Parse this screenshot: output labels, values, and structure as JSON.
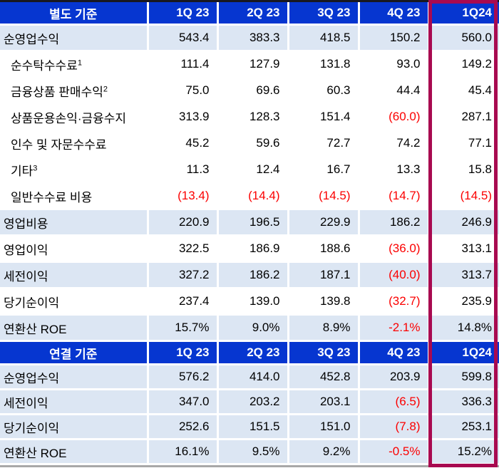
{
  "colors": {
    "header_bg": "#0636d0",
    "row_shade": "#dce6f3",
    "negative_text": "#fb0000",
    "highlight_border": "#a80a50",
    "top_rule": "#181820",
    "bottom_rule": "#a8a8a8"
  },
  "highlighted_column": "1Q24",
  "tables": [
    {
      "title": "별도 기준",
      "columns": [
        "1Q 23",
        "2Q 23",
        "3Q 23",
        "4Q 23",
        "1Q24"
      ],
      "rows": [
        {
          "label": "순영업수익",
          "sup": "",
          "indent": false,
          "shade": true,
          "values": [
            "543.4",
            "383.3",
            "418.5",
            "150.2",
            "560.0"
          ]
        },
        {
          "label": "순수탁수수료",
          "sup": "1",
          "indent": true,
          "shade": false,
          "values": [
            "111.4",
            "127.9",
            "131.8",
            "93.0",
            "149.2"
          ]
        },
        {
          "label": "금융상품 판매수익",
          "sup": "2",
          "indent": true,
          "shade": false,
          "values": [
            "75.0",
            "69.6",
            "60.3",
            "44.4",
            "45.4"
          ]
        },
        {
          "label": "상품운용손익·금융수지",
          "sup": "",
          "indent": true,
          "shade": false,
          "values": [
            "313.9",
            "128.3",
            "151.4",
            "(60.0)",
            "287.1"
          ]
        },
        {
          "label": "인수 및 자문수수료",
          "sup": "",
          "indent": true,
          "shade": false,
          "values": [
            "45.2",
            "59.6",
            "72.7",
            "74.2",
            "77.1"
          ]
        },
        {
          "label": "기타",
          "sup": "3",
          "indent": true,
          "shade": false,
          "values": [
            "11.3",
            "12.4",
            "16.7",
            "13.3",
            "15.8"
          ]
        },
        {
          "label": "일반수수료 비용",
          "sup": "",
          "indent": true,
          "shade": false,
          "values": [
            "(13.4)",
            "(14.4)",
            "(14.5)",
            "(14.7)",
            "(14.5)"
          ]
        },
        {
          "label": "영업비용",
          "sup": "",
          "indent": false,
          "shade": true,
          "values": [
            "220.9",
            "196.5",
            "229.9",
            "186.2",
            "246.9"
          ]
        },
        {
          "label": "영업이익",
          "sup": "",
          "indent": false,
          "shade": false,
          "values": [
            "322.5",
            "186.9",
            "188.6",
            "(36.0)",
            "313.1"
          ]
        },
        {
          "label": "세전이익",
          "sup": "",
          "indent": false,
          "shade": true,
          "values": [
            "327.2",
            "186.2",
            "187.1",
            "(40.0)",
            "313.7"
          ]
        },
        {
          "label": "당기순이익",
          "sup": "",
          "indent": false,
          "shade": false,
          "values": [
            "237.4",
            "139.0",
            "139.8",
            "(32.7)",
            "235.9"
          ]
        },
        {
          "label": "연환산 ROE",
          "sup": "",
          "indent": false,
          "shade": true,
          "values": [
            "15.7%",
            "9.0%",
            "8.9%",
            "-2.1%",
            "14.8%"
          ]
        }
      ]
    },
    {
      "title": "연결 기준",
      "columns": [
        "1Q 23",
        "2Q 23",
        "3Q 23",
        "4Q 23",
        "1Q24"
      ],
      "rows": [
        {
          "label": "순영업수익",
          "sup": "",
          "indent": false,
          "shade": true,
          "values": [
            "576.2",
            "414.0",
            "452.8",
            "203.9",
            "599.8"
          ]
        },
        {
          "label": "세전이익",
          "sup": "",
          "indent": false,
          "shade": true,
          "values": [
            "347.0",
            "203.2",
            "203.1",
            "(6.5)",
            "336.3"
          ]
        },
        {
          "label": "당기순이익",
          "sup": "",
          "indent": false,
          "shade": true,
          "values": [
            "252.6",
            "151.5",
            "151.0",
            "(7.8)",
            "253.1"
          ]
        },
        {
          "label": "연환산 ROE",
          "sup": "",
          "indent": false,
          "shade": true,
          "values": [
            "16.1%",
            "9.5%",
            "9.2%",
            "-0.5%",
            "15.2%"
          ]
        }
      ]
    }
  ]
}
